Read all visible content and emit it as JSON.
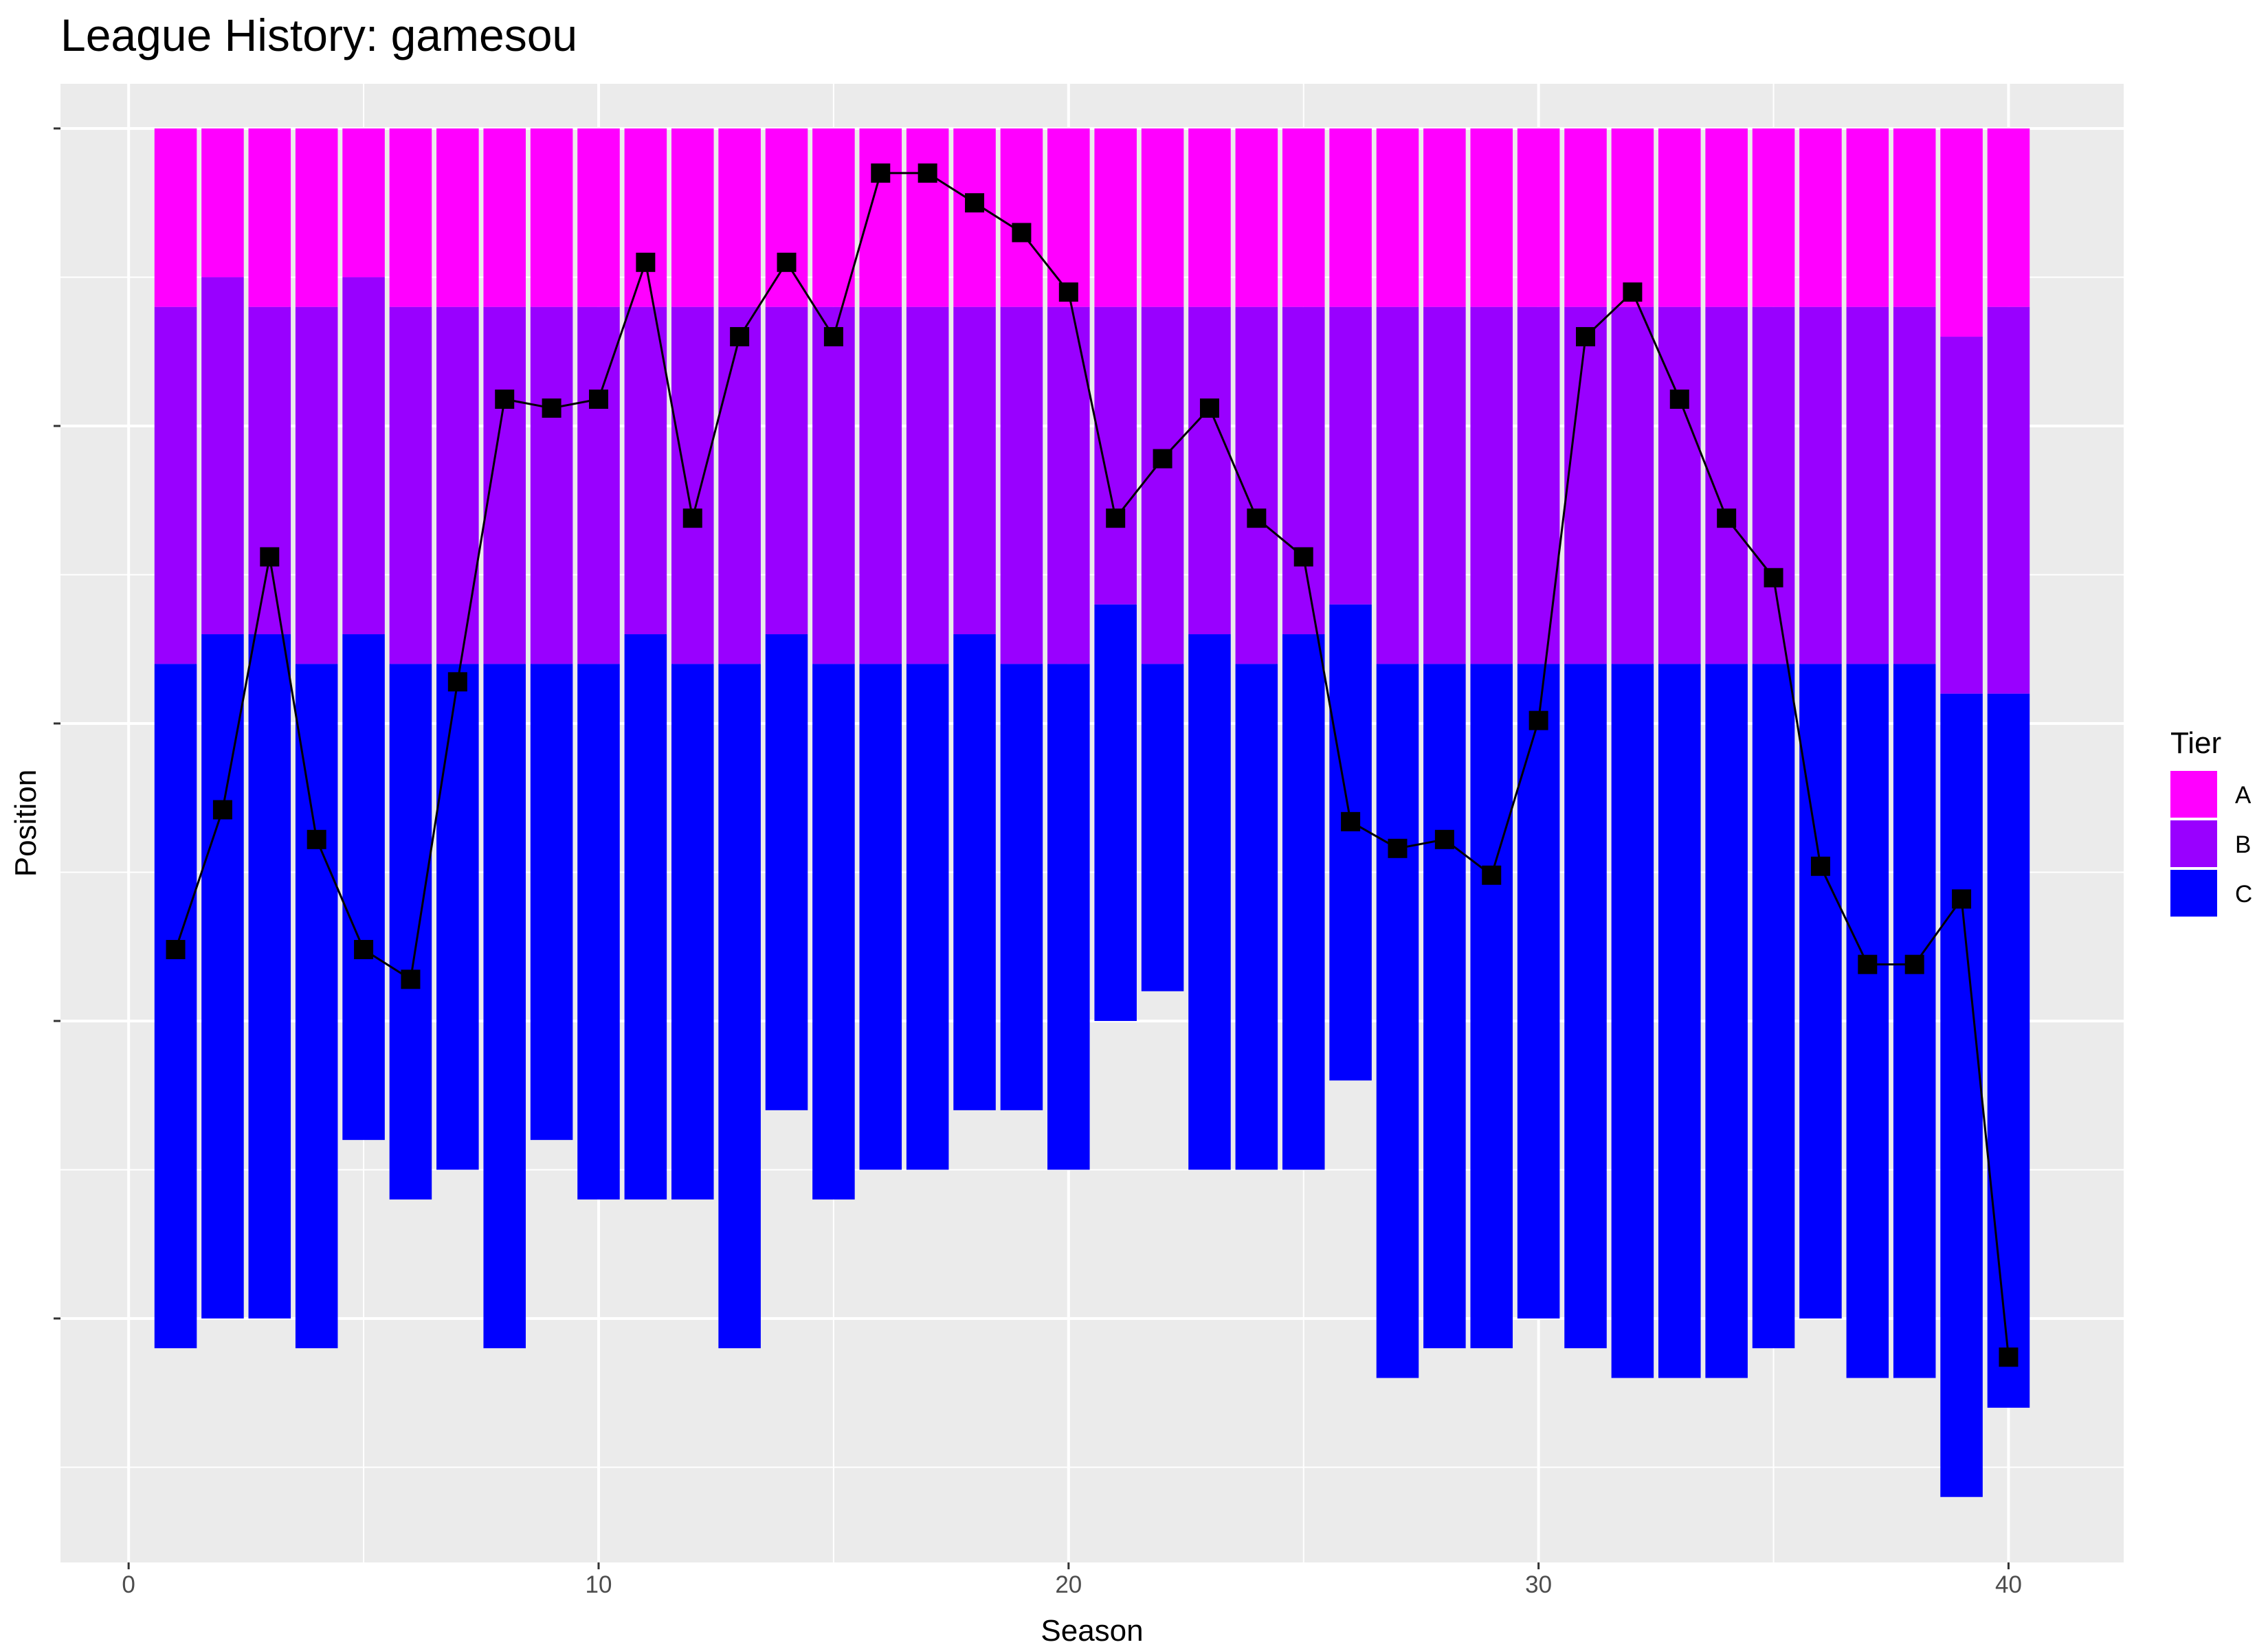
{
  "chart_data": {
    "type": "bar",
    "title": "League History: gamesou",
    "xlabel": "Season",
    "ylabel": "Position",
    "xlim": [
      -1.45,
      42.45
    ],
    "ylim": [
      -48.2,
      1.5
    ],
    "x_ticks": [
      0,
      10,
      20,
      30,
      40
    ],
    "y_ticks": [
      -40,
      -30,
      -20,
      -10,
      0
    ],
    "y_tick_labels_shown": false,
    "grid": true,
    "legend": {
      "title": "Tier",
      "placement": "right"
    },
    "tiers": [
      {
        "name": "A",
        "color": "#FF00FF"
      },
      {
        "name": "B",
        "color": "#9900FF"
      },
      {
        "name": "C",
        "color": "#0000FF"
      }
    ],
    "seasons": [
      1,
      2,
      3,
      4,
      5,
      6,
      7,
      8,
      9,
      10,
      11,
      12,
      13,
      14,
      15,
      16,
      17,
      18,
      19,
      20,
      21,
      22,
      23,
      24,
      25,
      26,
      27,
      28,
      29,
      30,
      31,
      32,
      33,
      34,
      35,
      36,
      37,
      38,
      39,
      40
    ],
    "tier_a_size": [
      6,
      5,
      6,
      6,
      5,
      6,
      6,
      6,
      6,
      6,
      6,
      6,
      6,
      6,
      6,
      6,
      6,
      6,
      6,
      6,
      6,
      6,
      6,
      6,
      6,
      6,
      6,
      6,
      6,
      6,
      6,
      6,
      6,
      6,
      6,
      6,
      6,
      6,
      7,
      6
    ],
    "tier_b_size": [
      12,
      12,
      11,
      12,
      12,
      12,
      12,
      12,
      12,
      12,
      11,
      12,
      12,
      11,
      12,
      12,
      12,
      11,
      12,
      12,
      10,
      12,
      11,
      12,
      11,
      10,
      12,
      12,
      12,
      12,
      12,
      12,
      12,
      12,
      12,
      12,
      12,
      12,
      12,
      13
    ],
    "tier_c_size": [
      23,
      23,
      23,
      23,
      17,
      18,
      17,
      23,
      16,
      18,
      19,
      18,
      23,
      16,
      18,
      17,
      17,
      16,
      15,
      17,
      14,
      11,
      18,
      17,
      18,
      16,
      24,
      23,
      23,
      22,
      23,
      24,
      24,
      24,
      23,
      22,
      24,
      24,
      27,
      24
    ],
    "position": [
      -27.6,
      -22.9,
      -14.4,
      -23.9,
      -27.6,
      -28.6,
      -18.6,
      -9.1,
      -9.4,
      -9.1,
      -4.5,
      -13.1,
      -7,
      -4.5,
      -7,
      -1.5,
      -1.5,
      -2.5,
      -3.5,
      -5.5,
      -13.1,
      -11.1,
      -9.4,
      -13.1,
      -14.4,
      -23.3,
      -24.2,
      -23.9,
      -25.1,
      -19.9,
      -7,
      -5.5,
      -9.1,
      -13.1,
      -15.1,
      -24.8,
      -28.1,
      -28.1,
      -25.9,
      -41.3
    ]
  }
}
